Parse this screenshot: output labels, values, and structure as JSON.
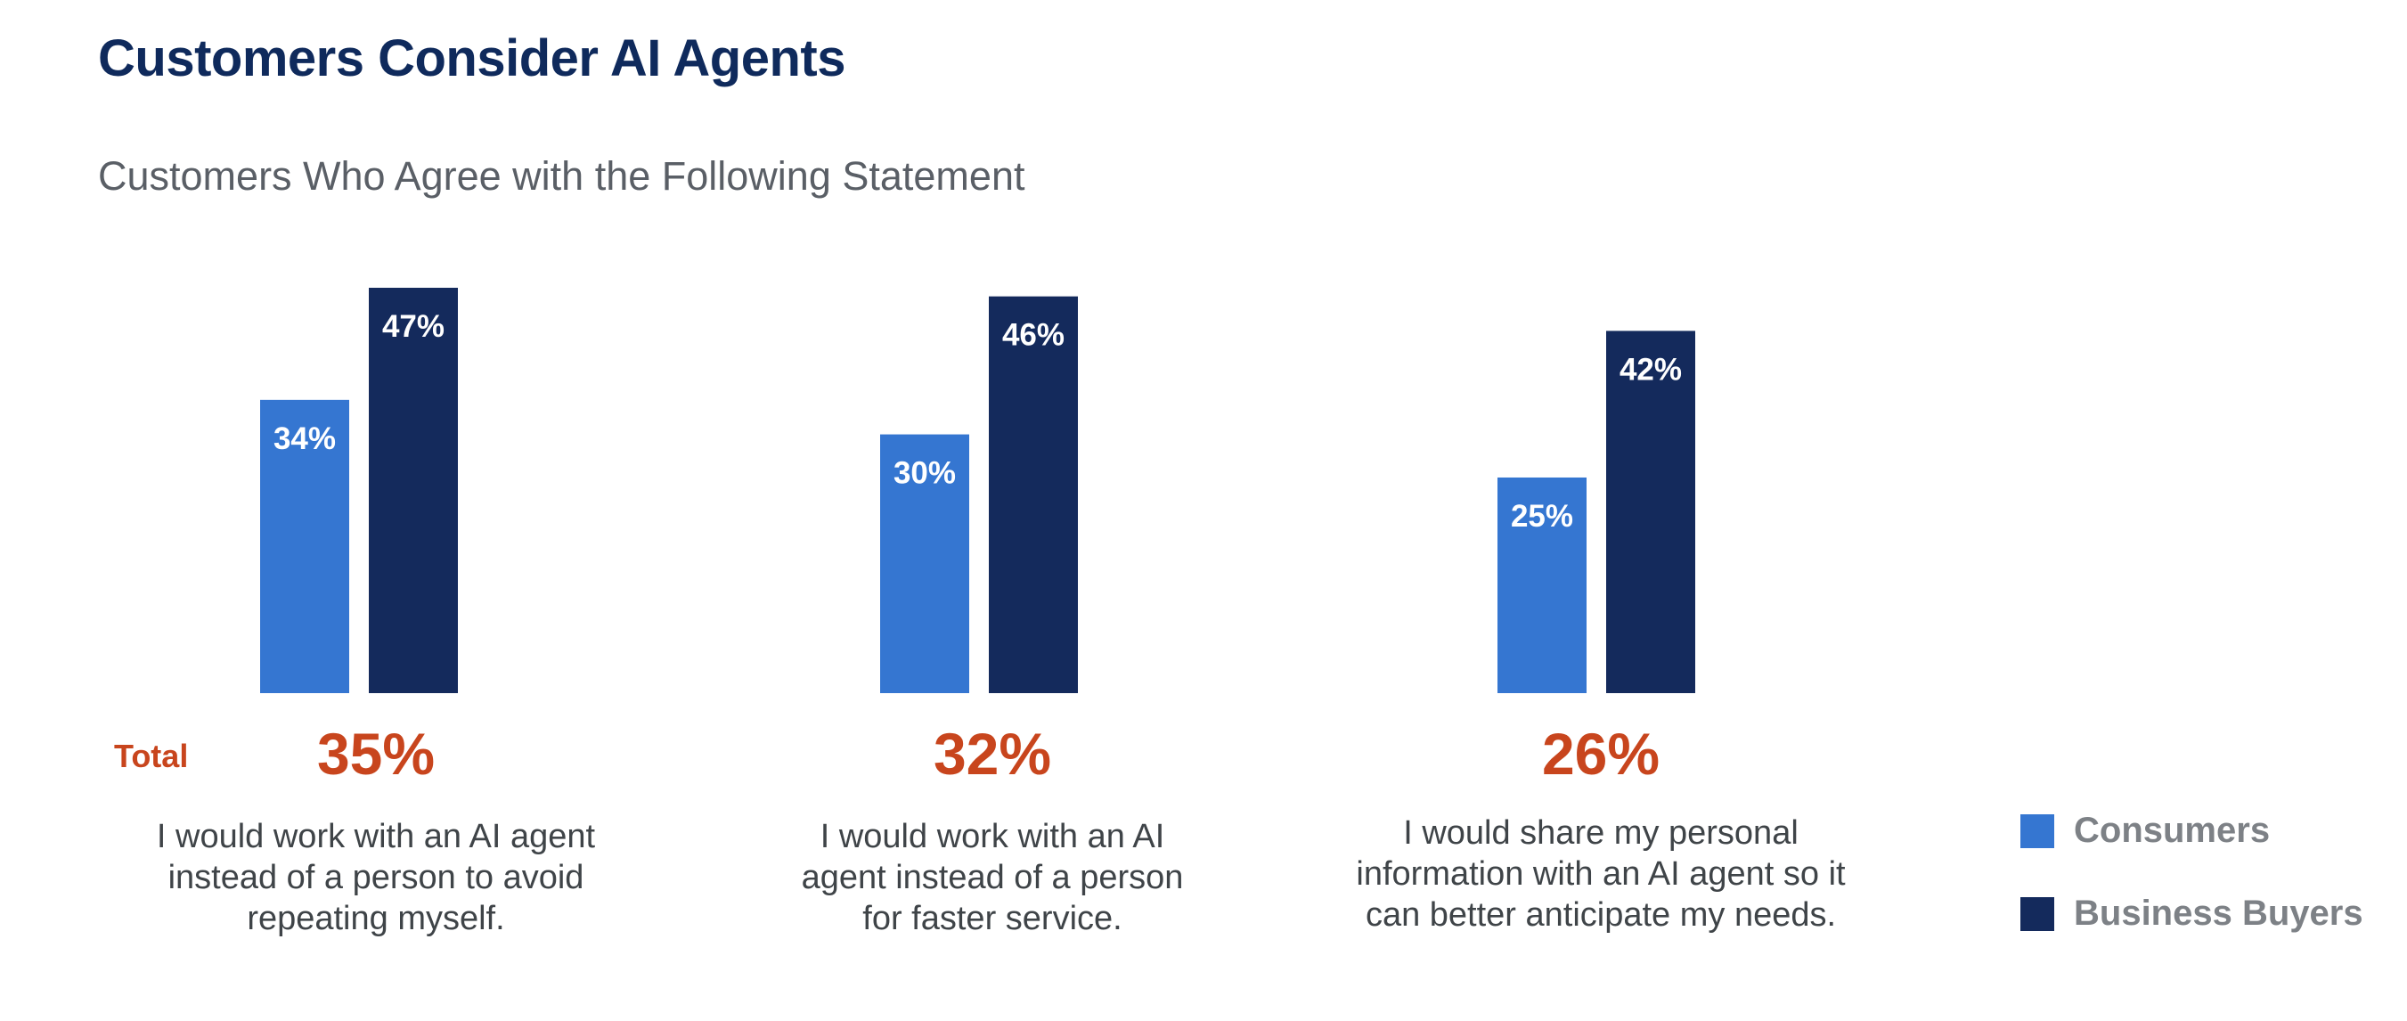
{
  "title": "Customers Consider AI Agents",
  "subtitle": "Customers Who Agree with the Following Statement",
  "total_label": "Total",
  "legend": [
    {
      "label": "Consumers",
      "color": "#3576d1"
    },
    {
      "label": "Business Buyers",
      "color": "#142a5c"
    }
  ],
  "chart_data": {
    "type": "bar",
    "title": "Customers Consider AI Agents",
    "subtitle": "Customers Who Agree with the Following Statement",
    "categories": [
      "I would work with an AI agent instead of a person to avoid repeating myself.",
      "I would work with an AI agent instead of a person for faster service.",
      "I would share my personal information with an AI agent so it can better anticipate my needs."
    ],
    "series": [
      {
        "name": "Consumers",
        "color": "#3576d1",
        "values": [
          34,
          30,
          25
        ],
        "labels": [
          "34%",
          "30%",
          "25%"
        ]
      },
      {
        "name": "Business Buyers",
        "color": "#142a5c",
        "values": [
          47,
          46,
          42
        ],
        "labels": [
          "47%",
          "46%",
          "42%"
        ]
      }
    ],
    "totals": [
      35,
      32,
      26
    ],
    "total_labels": [
      "35%",
      "32%",
      "26%"
    ],
    "ylim": [
      0,
      47
    ],
    "grid": false,
    "legend_position": "bottom-right"
  },
  "statements": [
    [
      "I would work with an AI agent",
      "instead of a person to avoid",
      "repeating myself."
    ],
    [
      "I would work with an AI",
      "agent instead of a person",
      "for faster service."
    ],
    [
      "I would share my personal",
      "information with an AI agent so it",
      "can better anticipate my needs."
    ]
  ]
}
